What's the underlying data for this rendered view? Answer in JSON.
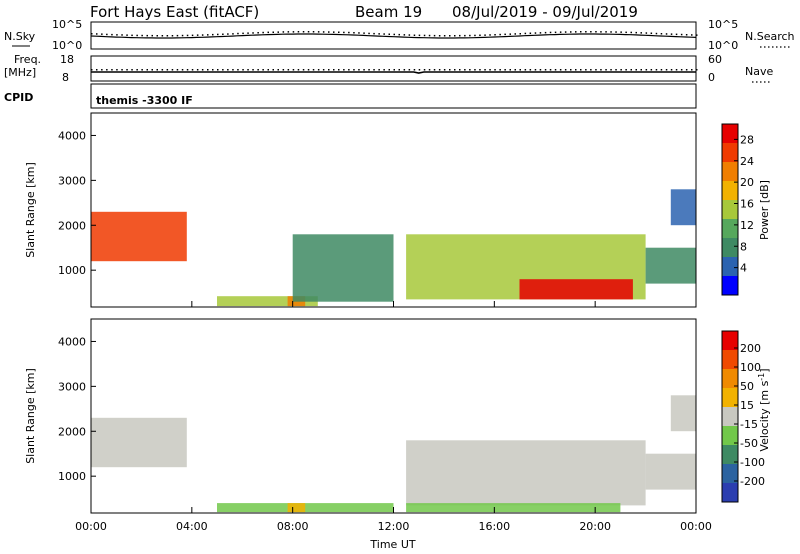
{
  "header": {
    "station": "Fort Hays East (fitACF)",
    "beam": "Beam 19",
    "dates": "08/Jul/2019 - 09/Jul/2019"
  },
  "status_panels": {
    "nsky_label": "N.Sky",
    "nsearch_label": "N.Search",
    "nsky_ticks": [
      "10^5",
      "10^0"
    ],
    "nsearch_ticks": [
      "10^5",
      "10^0"
    ],
    "freq_label_line1": "Freq.",
    "freq_label_line2": "[MHz]",
    "freq_ticks": [
      "18",
      "8"
    ],
    "nave_label": "Nave",
    "nave_ticks": [
      "60",
      "0"
    ],
    "cpid_label": "CPID",
    "cpid_text": "themis -3300 IF"
  },
  "colors": {
    "power_scale": [
      "#0000ff",
      "#2b63b0",
      "#3e8a63",
      "#56a85c",
      "#a7c83a",
      "#f2b200",
      "#f07e00",
      "#f03a00",
      "#e60000"
    ],
    "velocity_scale": [
      "#2b3eb0",
      "#2b63a0",
      "#3e8a63",
      "#72c84a",
      "#c8c8c0",
      "#f2b200",
      "#f08a00",
      "#f04a00",
      "#e60000"
    ]
  },
  "chart_data": [
    {
      "type": "heatmap",
      "name": "power",
      "ylabel": "Slant Range [km]",
      "ylim": [
        180,
        4500
      ],
      "yticks": [
        1000,
        2000,
        3000,
        4000
      ],
      "xlabel": "",
      "xticks": [],
      "colorbar": {
        "label": "Power [dB]",
        "ticks": [
          "4",
          "8",
          "12",
          "16",
          "20",
          "24",
          "28"
        ],
        "range": [
          0,
          30
        ]
      },
      "regions": [
        {
          "t0": 0.0,
          "t1": 3.8,
          "r0": 1200,
          "r1": 2300,
          "value": 24
        },
        {
          "t0": 5.0,
          "t1": 9.0,
          "r0": 200,
          "r1": 420,
          "value": 14
        },
        {
          "t0": 7.8,
          "t1": 8.5,
          "r0": 200,
          "r1": 420,
          "value": 22
        },
        {
          "t0": 8.0,
          "t1": 12.0,
          "r0": 300,
          "r1": 1800,
          "value": 8
        },
        {
          "t0": 12.5,
          "t1": 22.0,
          "r0": 350,
          "r1": 1800,
          "value": 16
        },
        {
          "t0": 17.0,
          "t1": 21.5,
          "r0": 350,
          "r1": 800,
          "value": 28
        },
        {
          "t0": 22.0,
          "t1": 24.0,
          "r0": 700,
          "r1": 1500,
          "value": 8
        },
        {
          "t0": 23.0,
          "t1": 24.0,
          "r0": 2000,
          "r1": 2800,
          "value": 6
        }
      ]
    },
    {
      "type": "heatmap",
      "name": "velocity",
      "ylabel": "Slant Range [km]",
      "ylim": [
        180,
        4500
      ],
      "yticks": [
        1000,
        2000,
        3000,
        4000
      ],
      "xlabel": "Time UT",
      "xticks": [
        "00:00",
        "04:00",
        "08:00",
        "12:00",
        "16:00",
        "20:00",
        "00:00"
      ],
      "xlim": [
        0,
        24
      ],
      "colorbar": {
        "label": "Velocity [m s^-1]",
        "ticks": [
          "200",
          "100",
          "50",
          "15",
          "-15",
          "-50",
          "-100",
          "-200"
        ],
        "range": [
          -250,
          250
        ]
      },
      "regions": [
        {
          "t0": 0.0,
          "t1": 3.8,
          "r0": 1200,
          "r1": 2300,
          "value": 0
        },
        {
          "t0": 5.0,
          "t1": 12.0,
          "r0": 200,
          "r1": 400,
          "value": -40
        },
        {
          "t0": 7.8,
          "t1": 8.5,
          "r0": 200,
          "r1": 400,
          "value": 40
        },
        {
          "t0": 12.5,
          "t1": 22.0,
          "r0": 350,
          "r1": 1800,
          "value": 0
        },
        {
          "t0": 12.5,
          "t1": 21.0,
          "r0": 200,
          "r1": 400,
          "value": -40
        },
        {
          "t0": 22.0,
          "t1": 24.0,
          "r0": 700,
          "r1": 1500,
          "value": 0
        },
        {
          "t0": 23.0,
          "t1": 24.0,
          "r0": 2000,
          "r1": 2800,
          "value": 0
        }
      ]
    }
  ]
}
